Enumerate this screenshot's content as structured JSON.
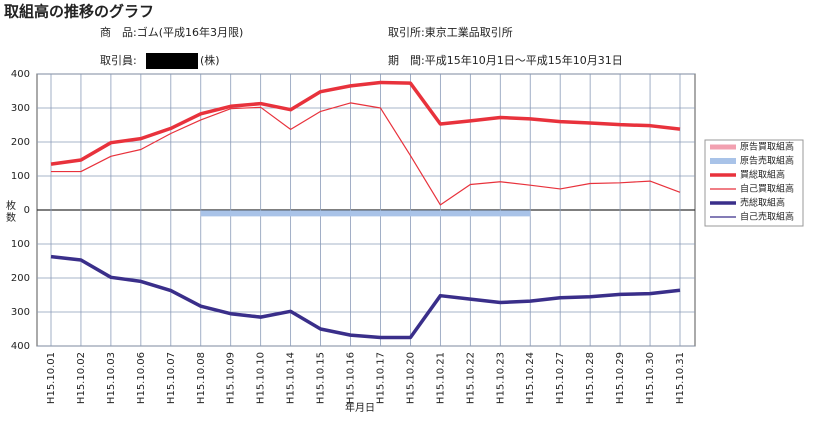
{
  "header": {
    "product": "商　品:ゴム(平成16年3月限)",
    "exchange": "取引所:東京工業品取引所",
    "broker_label": "取引員:",
    "broker_suffix": "(株)",
    "period": "期　間:平成15年10月1日～平成15年10月31日"
  },
  "chart_data": {
    "type": "line",
    "title": "取組高の推移のグラフ",
    "y_label": "枚数",
    "x_label": "年月日",
    "categories": [
      "H15.10.01",
      "H15.10.02",
      "H15.10.03",
      "H15.10.06",
      "H15.10.07",
      "H15.10.08",
      "H15.10.09",
      "H15.10.10",
      "H15.10.14",
      "H15.10.15",
      "H15.10.16",
      "H15.10.17",
      "H15.10.20",
      "H15.10.21",
      "H15.10.22",
      "H15.10.23",
      "H15.10.24",
      "H15.10.27",
      "H15.10.28",
      "H15.10.29",
      "H15.10.30",
      "H15.10.31"
    ],
    "ylim": [
      -400,
      400
    ],
    "yticks": [
      {
        "value": -400,
        "label": "400"
      },
      {
        "value": -300,
        "label": "300"
      },
      {
        "value": -200,
        "label": "200"
      },
      {
        "value": -100,
        "label": "100"
      },
      0,
      100,
      200,
      300,
      400
    ],
    "grid": true,
    "legend": "right",
    "series": [
      {
        "name": "原告買取組高",
        "color": "#f2a0b0",
        "width": 5,
        "values": [
          null,
          null,
          null,
          null,
          null,
          null,
          null,
          null,
          null,
          null,
          null,
          null,
          null,
          null,
          null,
          null,
          null,
          null,
          null,
          null,
          null,
          null
        ]
      },
      {
        "name": "原告売取組高",
        "color": "#a9c3e8",
        "width": 6,
        "values": [
          null,
          null,
          null,
          null,
          null,
          -10,
          -10,
          -10,
          -10,
          -10,
          -10,
          -10,
          -10,
          -10,
          -10,
          -10,
          -10,
          null,
          null,
          null,
          null,
          null
        ]
      },
      {
        "name": "買総取組高",
        "color": "#e8323c",
        "width": 3.5,
        "values": [
          135,
          147,
          198,
          210,
          240,
          283,
          305,
          313,
          295,
          348,
          365,
          375,
          373,
          253,
          262,
          272,
          268,
          260,
          256,
          251,
          248,
          238
        ]
      },
      {
        "name": "自己買取組高",
        "color": "#e8323c",
        "width": 1.2,
        "values": [
          113,
          113,
          158,
          178,
          225,
          265,
          298,
          302,
          237,
          290,
          315,
          300,
          160,
          15,
          75,
          83,
          73,
          62,
          78,
          80,
          85,
          52
        ]
      },
      {
        "name": "売総取組高",
        "color": "#3a2f8a",
        "width": 3.5,
        "values": [
          -137,
          -147,
          -198,
          -210,
          -237,
          -283,
          -305,
          -315,
          -298,
          -350,
          -368,
          -375,
          -375,
          -252,
          -262,
          -272,
          -268,
          -258,
          -255,
          -248,
          -246,
          -236
        ]
      },
      {
        "name": "自己売取組高",
        "color": "#3a2f8a",
        "width": 1.2,
        "values": [
          -137,
          -147,
          -198,
          -210,
          -237,
          -283,
          -303,
          -312,
          -298,
          -350,
          -368,
          -375,
          -375,
          -252,
          -262,
          -272,
          -268,
          -258,
          -255,
          -248,
          -246,
          -236
        ]
      }
    ]
  }
}
